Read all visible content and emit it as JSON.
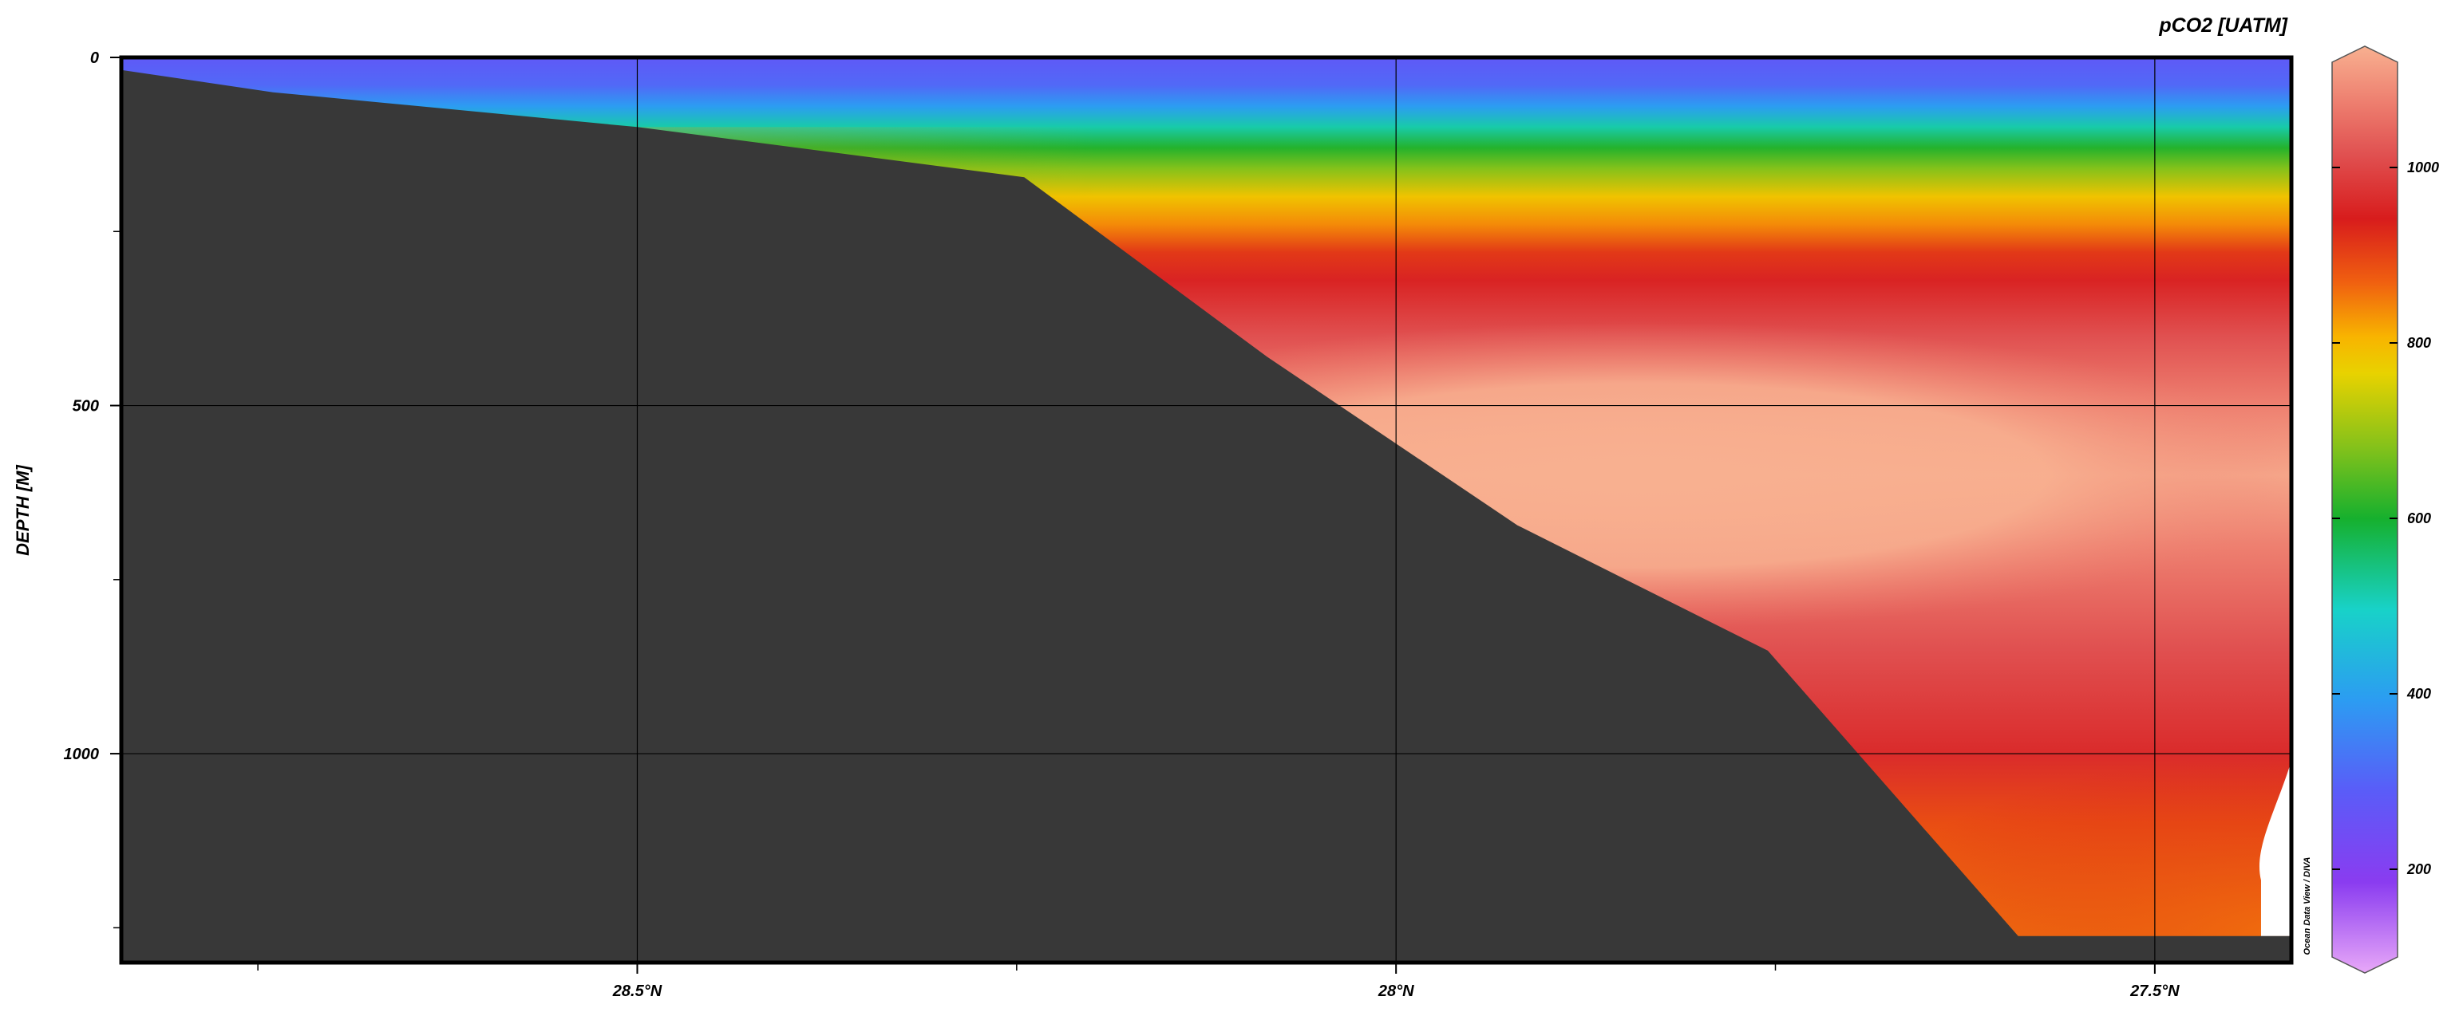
{
  "chart_data": {
    "type": "heatmap",
    "title": "",
    "variable_label": "pCO2 [UATM]",
    "ylabel": "DEPTH [M]",
    "xlabel": "",
    "credit": "Ocean Data View / DIVA",
    "x_axis": {
      "unit": "degrees N latitude",
      "range": [
        28.84,
        27.41
      ],
      "reversed": true,
      "major_ticks": [
        28.5,
        28.0,
        27.5
      ],
      "minor_ticks": [
        28.75,
        28.25,
        27.75
      ],
      "tick_labels": [
        "28.5°N",
        "28°N",
        "27.5°N"
      ]
    },
    "y_axis": {
      "unit": "m",
      "range": [
        0,
        1300
      ],
      "reversed": true,
      "major_ticks": [
        0,
        500,
        1000
      ],
      "minor_ticks": [
        250,
        750,
        1250
      ],
      "tick_labels": [
        "0",
        "500",
        "1000"
      ]
    },
    "grid": true,
    "colorbar": {
      "range": [
        100,
        1120
      ],
      "ticks": [
        200,
        400,
        600,
        800,
        1000
      ],
      "tick_labels": [
        "200",
        "400",
        "600",
        "800",
        "1000"
      ],
      "colors": [
        {
          "value": 100,
          "color": "#e8a8f8"
        },
        {
          "value": 200,
          "color": "#8a3cf0"
        },
        {
          "value": 300,
          "color": "#5a5cf8"
        },
        {
          "value": 400,
          "color": "#2c9cf2"
        },
        {
          "value": 500,
          "color": "#18d2c8"
        },
        {
          "value": 600,
          "color": "#16b02e"
        },
        {
          "value": 680,
          "color": "#86c21a"
        },
        {
          "value": 760,
          "color": "#e8d200"
        },
        {
          "value": 800,
          "color": "#f8b400"
        },
        {
          "value": 860,
          "color": "#f06010"
        },
        {
          "value": 930,
          "color": "#d81c1c"
        },
        {
          "value": 1000,
          "color": "#e05050"
        },
        {
          "value": 1060,
          "color": "#ee8070"
        },
        {
          "value": 1120,
          "color": "#f8b090"
        }
      ]
    },
    "bathymetry_depth": [
      {
        "lat": 28.84,
        "depth": 18
      },
      {
        "lat": 28.74,
        "depth": 50
      },
      {
        "lat": 28.5,
        "depth": 100
      },
      {
        "lat": 28.245,
        "depth": 172
      },
      {
        "lat": 28.085,
        "depth": 430
      },
      {
        "lat": 27.92,
        "depth": 672
      },
      {
        "lat": 27.755,
        "depth": 852
      },
      {
        "lat": 27.59,
        "depth": 1262
      },
      {
        "lat": 27.41,
        "depth": 1262
      }
    ],
    "data_gap": {
      "lat_min": 27.43,
      "depth_min": 1010,
      "depth_max": 1262
    },
    "pco2_profile": [
      {
        "depth": 0,
        "value": 290
      },
      {
        "depth": 40,
        "value": 320
      },
      {
        "depth": 70,
        "value": 400
      },
      {
        "depth": 100,
        "value": 520
      },
      {
        "depth": 130,
        "value": 610
      },
      {
        "depth": 160,
        "value": 680
      },
      {
        "depth": 200,
        "value": 780
      },
      {
        "depth": 240,
        "value": 830
      },
      {
        "depth": 280,
        "value": 900
      },
      {
        "depth": 320,
        "value": 940
      },
      {
        "depth": 400,
        "value": 1000
      },
      {
        "depth": 500,
        "value": 1060
      },
      {
        "depth": 600,
        "value": 1110
      },
      {
        "depth": 700,
        "value": 1060
      },
      {
        "depth": 850,
        "value": 1000
      },
      {
        "depth": 1000,
        "value": 950
      },
      {
        "depth": 1100,
        "value": 880
      },
      {
        "depth": 1262,
        "value": 840
      }
    ]
  }
}
